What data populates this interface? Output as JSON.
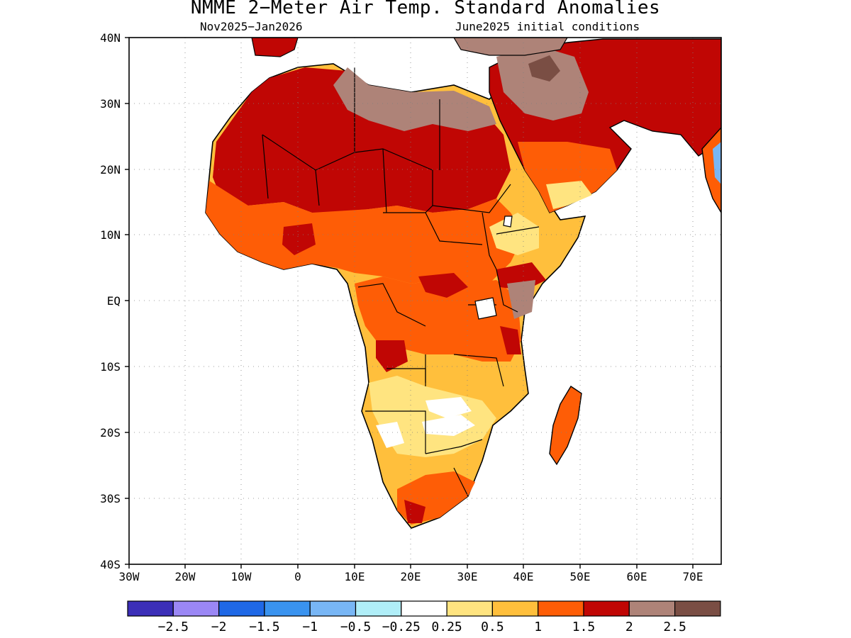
{
  "title": "NMME 2−Meter Air Temp. Standard Anomalies",
  "period": "Nov2025−Jan2026",
  "initial_conditions": "June2025 initial conditions",
  "lat_labels": [
    "40N",
    "30N",
    "20N",
    "10N",
    "EQ",
    "10S",
    "20S",
    "30S",
    "40S"
  ],
  "lon_labels": [
    "30W",
    "20W",
    "10W",
    "0",
    "10E",
    "20E",
    "30E",
    "40E",
    "50E",
    "60E",
    "70E"
  ],
  "colorbar": {
    "colors": [
      "#3c2fb8",
      "#9b87f5",
      "#1f68e6",
      "#3a93ef",
      "#78b6f5",
      "#b0eef8",
      "#ffffff",
      "#ffe480",
      "#ffbf3c",
      "#fe5d06",
      "#c00604",
      "#ae8378",
      "#7a4e44"
    ],
    "labels": [
      "−2.5",
      "−2",
      "−1.5",
      "−1",
      "−0.5",
      "−0.25",
      "0.25",
      "0.5",
      "1",
      "1.5",
      "2",
      "2.5"
    ]
  },
  "colors": {
    "dark_red": "#c00604",
    "red_orange": "#fe5d06",
    "orange": "#ffbf3c",
    "yellow": "#ffe480",
    "brown": "#ae8378",
    "dark_brown": "#7a4e44",
    "light_blue": "#78b6f5"
  }
}
